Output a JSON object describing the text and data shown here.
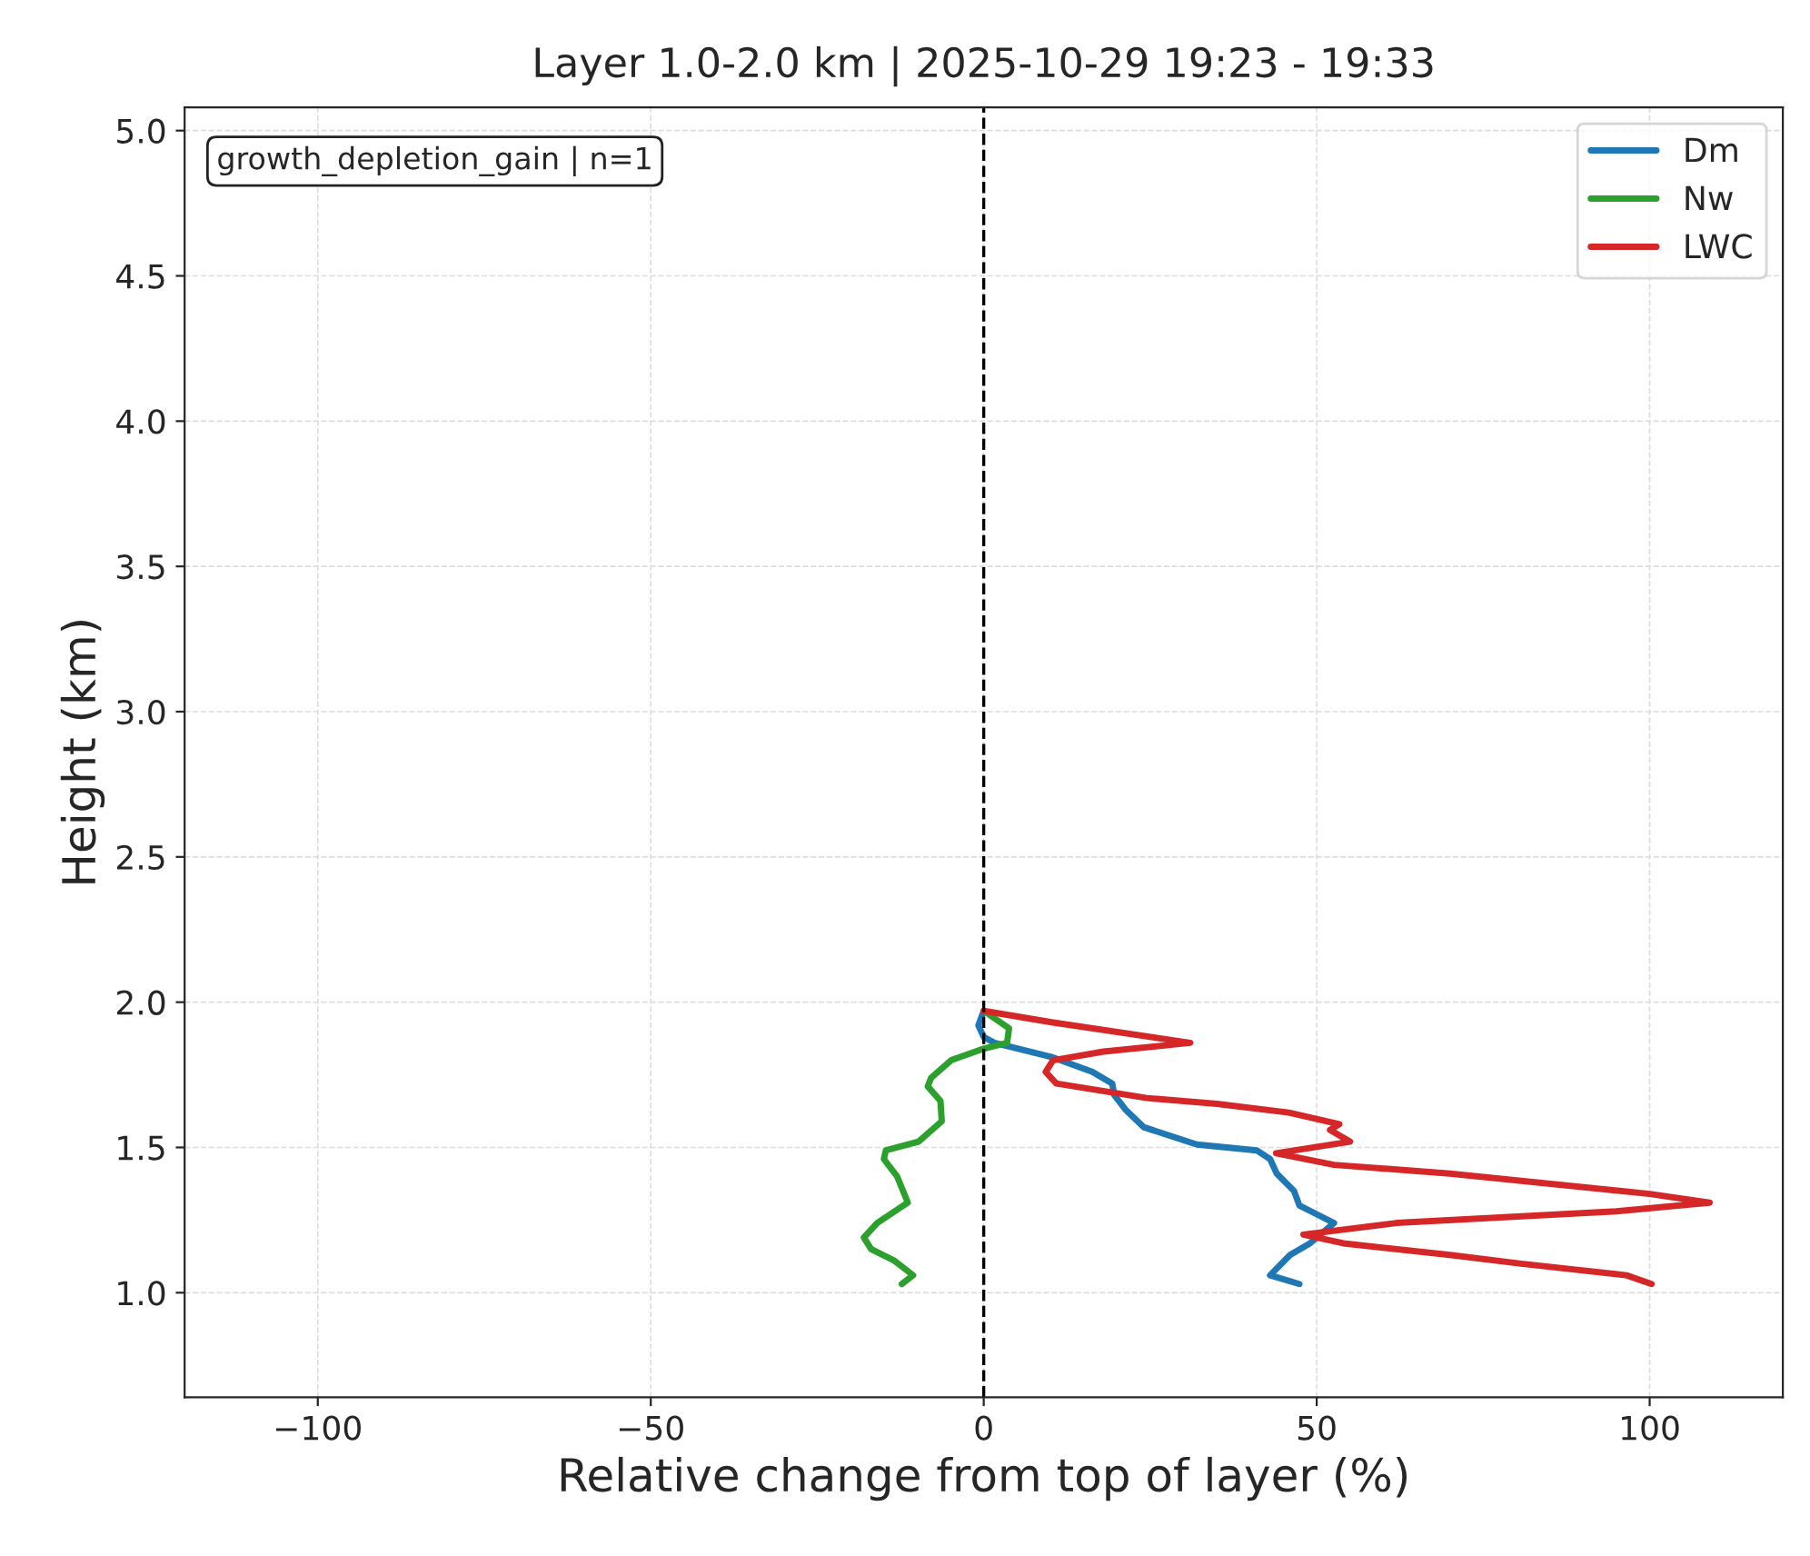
{
  "chart_data": {
    "type": "line",
    "title": "Layer 1.0-2.0 km | 2025-10-29 19:23 - 19:33",
    "xlabel": "Relative change from top of layer (%)",
    "ylabel": "Height (km)",
    "annotations": [
      "growth_depletion_gain | n=1"
    ],
    "xlim": [
      -120,
      120
    ],
    "xticks": [
      {
        "value": -100,
        "label": "−100"
      },
      {
        "value": -50,
        "label": "−50"
      },
      0,
      50,
      100
    ],
    "ylim": [
      0.64,
      5.08
    ],
    "yticks": [
      {
        "value": 1.0,
        "label": "1.0"
      },
      1.5,
      {
        "value": 2.0,
        "label": "2.0"
      },
      2.5,
      {
        "value": 3.0,
        "label": "3.0"
      },
      3.5,
      {
        "value": 4.0,
        "label": "4.0"
      },
      4.5,
      {
        "value": 5.0,
        "label": "5.0"
      }
    ],
    "grid": true,
    "legend": "top right",
    "line_style": "solid",
    "marker": "none",
    "ref_lines": [
      {
        "axis": "x",
        "value": 0,
        "color": "#000000",
        "line_style": "dashed"
      }
    ],
    "series": [
      {
        "name": "Dm",
        "color": "#1f77b4",
        "x": [
          0,
          -0.8,
          0,
          1.6,
          10.4,
          16.3,
          19.3,
          19.6,
          21.3,
          24,
          32,
          41,
          43,
          44,
          46.6,
          47.4,
          50,
          52.6,
          49,
          46,
          43,
          47.4
        ],
        "values": [
          1.97,
          1.92,
          1.88,
          1.86,
          1.81,
          1.76,
          1.72,
          1.68,
          1.63,
          1.57,
          1.51,
          1.49,
          1.46,
          1.41,
          1.35,
          1.3,
          1.27,
          1.24,
          1.17,
          1.13,
          1.06,
          1.03
        ]
      },
      {
        "name": "Nw",
        "color": "#2ca02c",
        "x": [
          0,
          3.8,
          3.5,
          0,
          -4.9,
          -7.9,
          -8.4,
          -6.5,
          -6.3,
          -9.8,
          -14.7,
          -15,
          -13,
          -11.4,
          -16,
          -18,
          -16.9,
          -13.4,
          -10.6,
          -12.3
        ],
        "values": [
          1.97,
          1.91,
          1.86,
          1.84,
          1.8,
          1.74,
          1.71,
          1.66,
          1.59,
          1.52,
          1.49,
          1.46,
          1.4,
          1.31,
          1.24,
          1.19,
          1.15,
          1.11,
          1.06,
          1.03
        ]
      },
      {
        "name": "LWC",
        "color": "#d62728",
        "x": [
          0,
          10.4,
          31,
          18,
          10.4,
          9.3,
          10.9,
          24.5,
          35,
          45.8,
          53.4,
          52,
          55,
          43.9,
          52.6,
          70,
          100,
          109,
          95,
          62,
          48,
          54,
          70,
          80.7,
          96.5,
          100.3
        ],
        "values": [
          1.97,
          1.93,
          1.86,
          1.83,
          1.8,
          1.76,
          1.72,
          1.67,
          1.65,
          1.62,
          1.58,
          1.56,
          1.52,
          1.48,
          1.44,
          1.41,
          1.34,
          1.31,
          1.28,
          1.24,
          1.2,
          1.17,
          1.13,
          1.1,
          1.06,
          1.03
        ]
      }
    ]
  }
}
